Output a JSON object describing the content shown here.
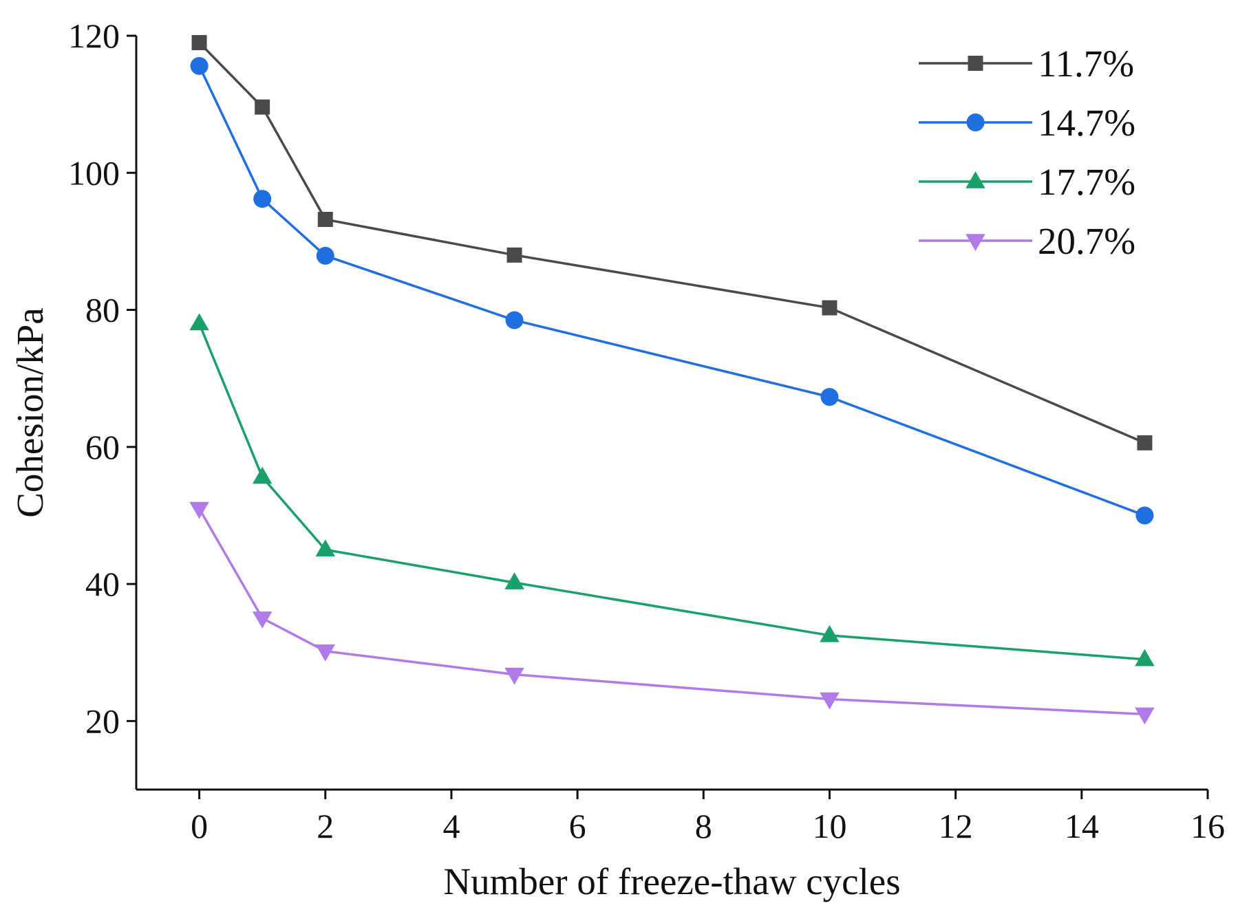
{
  "chart_data": {
    "type": "line",
    "title": "",
    "xlabel": "Number of freeze-thaw cycles",
    "ylabel": "Cohesion/kPa",
    "xlim": [
      -1,
      16
    ],
    "ylim": [
      10,
      120
    ],
    "xticks": [
      0,
      2,
      4,
      6,
      8,
      10,
      12,
      14,
      16
    ],
    "yticks": [
      20,
      40,
      60,
      80,
      100,
      120
    ],
    "grid": false,
    "legend_position": "top-right",
    "x": [
      0,
      1,
      2,
      5,
      10,
      15
    ],
    "series": [
      {
        "name": "11.7%",
        "color": "#4a4a4a",
        "marker": "square",
        "values": [
          119.0,
          109.6,
          93.2,
          88.0,
          80.3,
          60.6
        ]
      },
      {
        "name": "14.7%",
        "color": "#1f6fe0",
        "marker": "circle",
        "values": [
          115.6,
          96.2,
          87.9,
          78.5,
          67.3,
          50.0
        ]
      },
      {
        "name": "17.7%",
        "color": "#1aa06a",
        "marker": "triangle-up",
        "values": [
          78.0,
          55.6,
          45.0,
          40.2,
          32.5,
          29.0
        ]
      },
      {
        "name": "20.7%",
        "color": "#b07be8",
        "marker": "triangle-down",
        "values": [
          51.0,
          35.0,
          30.2,
          26.8,
          23.2,
          21.0
        ]
      }
    ]
  }
}
